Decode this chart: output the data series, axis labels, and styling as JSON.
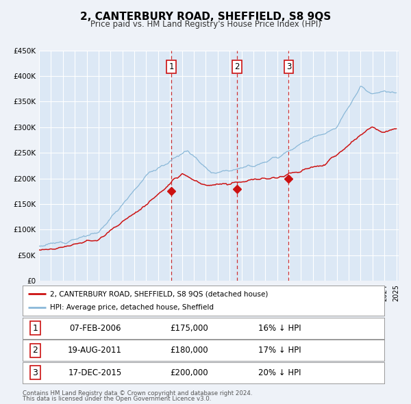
{
  "title": "2, CANTERBURY ROAD, SHEFFIELD, S8 9QS",
  "subtitle": "Price paid vs. HM Land Registry's House Price Index (HPI)",
  "bg_color": "#eef2f8",
  "plot_bg_color": "#dce8f5",
  "grid_color": "#ffffff",
  "hpi_color": "#8ab8d8",
  "price_color": "#cc1111",
  "ylim": [
    0,
    450000
  ],
  "yticks": [
    0,
    50000,
    100000,
    150000,
    200000,
    250000,
    300000,
    350000,
    400000,
    450000
  ],
  "ytick_labels": [
    "£0",
    "£50K",
    "£100K",
    "£150K",
    "£200K",
    "£250K",
    "£300K",
    "£350K",
    "£400K",
    "£450K"
  ],
  "year_start": 1995,
  "year_end": 2025,
  "purchases": [
    {
      "label": "1",
      "date": "07-FEB-2006",
      "year": 2006.1,
      "price": 175000,
      "pct": "16%",
      "direction": "↓"
    },
    {
      "label": "2",
      "date": "19-AUG-2011",
      "year": 2011.63,
      "price": 180000,
      "pct": "17%",
      "direction": "↓"
    },
    {
      "label": "3",
      "date": "17-DEC-2015",
      "year": 2015.96,
      "price": 200000,
      "pct": "20%",
      "direction": "↓"
    }
  ],
  "vline_colors": [
    "#cc1111",
    "#cc1111",
    "#cc1111"
  ],
  "legend_line1": "2, CANTERBURY ROAD, SHEFFIELD, S8 9QS (detached house)",
  "legend_line2": "HPI: Average price, detached house, Sheffield",
  "footer1": "Contains HM Land Registry data © Crown copyright and database right 2024.",
  "footer2": "This data is licensed under the Open Government Licence v3.0."
}
